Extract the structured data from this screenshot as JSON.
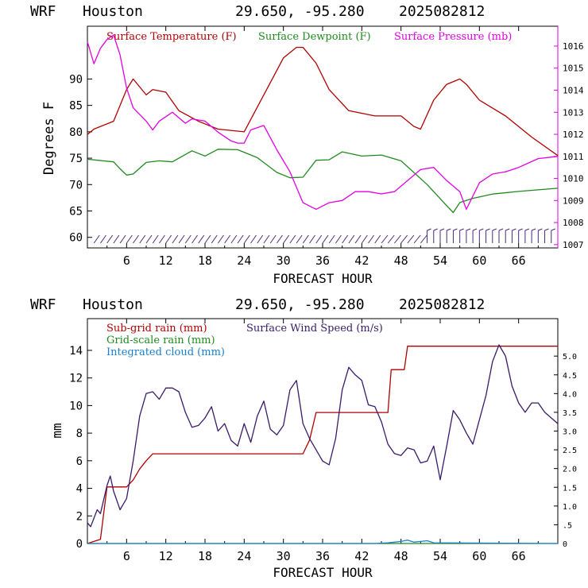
{
  "colors": {
    "temp": "#b00000",
    "dewpoint": "#1f8a1f",
    "pressure": "#e000e0",
    "subgrid_rain": "#b00000",
    "wind_speed": "#3a1a6a",
    "grid_rain": "#1f8a1f",
    "cloud": "#1a7fd0",
    "barbs": "#4a2a7a",
    "axis": "#000000"
  },
  "chart_data": [
    {
      "type": "line",
      "header": {
        "model": "WRF",
        "station": "Houston",
        "coords": "29.650, -95.280",
        "init": "2025082812"
      },
      "xlabel": "FORECAST HOUR",
      "ylabel": "Degrees F",
      "xlim": [
        0,
        72
      ],
      "ylim": [
        58,
        100
      ],
      "y2lim": [
        1006.85,
        1016.9
      ],
      "x_ticks": [
        "6",
        "12",
        "18",
        "24",
        "30",
        "36",
        "42",
        "48",
        "54",
        "60",
        "66"
      ],
      "y_ticks": [
        "60",
        "65",
        "70",
        "75",
        "80",
        "85",
        "90"
      ],
      "y2_ticks": [
        "1007",
        "1008",
        "1009",
        "1010",
        "1011",
        "1012",
        "1013",
        "1014",
        "1015",
        "1016"
      ],
      "grid": false,
      "legend_position": "top",
      "series": [
        {
          "name": "Surface Temperature (F)",
          "axis": "left",
          "color_key": "temp",
          "x": [
            0,
            1,
            4,
            6,
            7,
            9,
            10,
            12,
            14,
            17,
            20,
            24,
            27,
            30,
            32,
            33,
            35,
            37,
            40,
            44,
            48,
            50,
            51,
            53,
            55,
            57,
            58,
            60,
            64,
            68,
            72
          ],
          "y": [
            79.5,
            80.5,
            82,
            88,
            90,
            87,
            88,
            87.5,
            84,
            82,
            80.5,
            80,
            87,
            94,
            96,
            96,
            93,
            88,
            84,
            83,
            83,
            81,
            80.5,
            86,
            89,
            90,
            89,
            86,
            83,
            79,
            75.5
          ]
        },
        {
          "name": "Surface Dewpoint (F)",
          "axis": "left",
          "color_key": "dewpoint",
          "x": [
            0,
            4,
            5,
            6,
            7,
            9,
            11,
            13,
            16,
            18,
            20,
            23,
            26,
            29,
            31,
            33,
            35,
            37,
            39,
            42,
            45,
            48,
            52,
            55,
            56,
            57,
            59,
            62,
            66,
            72
          ],
          "y": [
            74.8,
            74.3,
            73,
            71.8,
            72,
            74.2,
            74.5,
            74.3,
            76.4,
            75.4,
            76.7,
            76.6,
            75.1,
            72.3,
            71.3,
            71.4,
            74.6,
            74.7,
            76.2,
            75.4,
            75.6,
            74.5,
            70,
            66,
            64.7,
            66.6,
            67.4,
            68.2,
            68.7,
            69.3
          ]
        },
        {
          "name": "Surface Pressure (mb)",
          "axis": "right",
          "color_key": "pressure",
          "x": [
            0,
            1,
            2,
            3,
            4,
            5,
            6,
            7,
            9,
            10,
            11,
            13,
            15,
            16,
            18,
            20,
            22,
            23,
            24,
            25,
            27,
            29,
            31,
            33,
            35,
            37,
            39,
            41,
            43,
            45,
            47,
            49,
            51,
            53,
            55,
            57,
            58,
            60,
            62,
            64,
            66,
            69,
            72
          ],
          "y": [
            1016.2,
            1015.2,
            1015.9,
            1016.3,
            1016.5,
            1015.6,
            1014.1,
            1013.2,
            1012.6,
            1012.2,
            1012.6,
            1013,
            1012.5,
            1012.7,
            1012.6,
            1012.1,
            1011.7,
            1011.6,
            1011.6,
            1012.2,
            1012.4,
            1011.3,
            1010.3,
            1008.9,
            1008.6,
            1008.9,
            1009,
            1009.4,
            1009.4,
            1009.3,
            1009.4,
            1009.9,
            1010.4,
            1010.5,
            1009.9,
            1009.4,
            1008.6,
            1009.8,
            1010.2,
            1010.3,
            1010.5,
            1010.9,
            1011
          ]
        }
      ],
      "wind_barbs": {
        "label": "wind barbs along bottom"
      }
    },
    {
      "type": "line",
      "header": {
        "model": "WRF",
        "station": "Houston",
        "coords": "29.650, -95.280",
        "init": "2025082812"
      },
      "xlabel": "FORECAST HOUR",
      "ylabel": "mm",
      "xlim": [
        0,
        72
      ],
      "ylim": [
        0,
        16.3
      ],
      "y2lim": [
        0,
        6.0
      ],
      "x_ticks": [
        "6",
        "12",
        "18",
        "24",
        "30",
        "36",
        "42",
        "48",
        "54",
        "60",
        "66"
      ],
      "y_ticks": [
        "0",
        "2",
        "4",
        "6",
        "8",
        "10",
        "12",
        "14"
      ],
      "y2_ticks": [
        "0",
        ".5",
        "1.0",
        "1.5",
        "2.0",
        "2.5",
        "3.0",
        "3.5",
        "4.0",
        "4.5",
        "5.0"
      ],
      "grid": false,
      "legend_position": "top-left",
      "series": [
        {
          "name": "Sub-grid rain (mm)",
          "axis": "left",
          "color_key": "subgrid_rain",
          "x": [
            0,
            2,
            3,
            6,
            7,
            8,
            9,
            10,
            33,
            34,
            35,
            46,
            46.5,
            48.5,
            49,
            72
          ],
          "y": [
            0,
            0.3,
            4.1,
            4.1,
            4.6,
            5.4,
            6.0,
            6.5,
            6.5,
            7.5,
            9.5,
            9.5,
            12.6,
            12.6,
            14.3,
            14.3
          ]
        },
        {
          "name": "Surface Wind Speed (m/s)",
          "axis": "right",
          "color_key": "wind_speed",
          "x": [
            0,
            0.5,
            1.5,
            2,
            3,
            3.5,
            4,
            5,
            6,
            7,
            8,
            9,
            10,
            11,
            12,
            13,
            14,
            15,
            16,
            17,
            18,
            19,
            20,
            21,
            22,
            23,
            24,
            25,
            26,
            27,
            28,
            29,
            30,
            31,
            32,
            33,
            34,
            35,
            36,
            37,
            38,
            39,
            40,
            41,
            42,
            43,
            44,
            45,
            46,
            47,
            48,
            49,
            50,
            51,
            52,
            53,
            54,
            55,
            56,
            57,
            58,
            59,
            60,
            61,
            62,
            63,
            64,
            65,
            66,
            67,
            68,
            69,
            70,
            71,
            72
          ],
          "y": [
            0.55,
            0.45,
            0.9,
            0.8,
            1.55,
            1.8,
            1.4,
            0.9,
            1.2,
            2.2,
            3.4,
            4.0,
            4.05,
            3.85,
            4.15,
            4.15,
            4.05,
            3.5,
            3.1,
            3.15,
            3.35,
            3.65,
            3.0,
            3.2,
            2.75,
            2.6,
            3.2,
            2.7,
            3.4,
            3.8,
            3.05,
            2.9,
            3.15,
            4.1,
            4.35,
            3.2,
            2.8,
            2.5,
            2.2,
            2.1,
            2.8,
            4.1,
            4.7,
            4.5,
            4.35,
            3.7,
            3.65,
            3.25,
            2.65,
            2.4,
            2.35,
            2.55,
            2.5,
            2.15,
            2.2,
            2.6,
            1.7,
            2.6,
            3.55,
            3.3,
            2.95,
            2.65,
            3.3,
            3.95,
            4.85,
            5.3,
            5.0,
            4.2,
            3.75,
            3.5,
            3.75,
            3.75,
            3.5,
            3.35,
            3.2
          ]
        },
        {
          "name": "Grid-scale rain (mm)",
          "axis": "left",
          "color_key": "grid_rain",
          "x": [
            0,
            72
          ],
          "y": [
            0,
            0
          ]
        },
        {
          "name": "Integrated cloud (mm)",
          "axis": "left",
          "color_key": "cloud",
          "x": [
            0,
            44,
            46,
            47,
            48,
            49,
            50,
            51,
            52,
            53,
            72
          ],
          "y": [
            0,
            0,
            0.05,
            0.1,
            0.15,
            0.25,
            0.1,
            0.15,
            0.2,
            0.05,
            0
          ]
        }
      ]
    }
  ]
}
